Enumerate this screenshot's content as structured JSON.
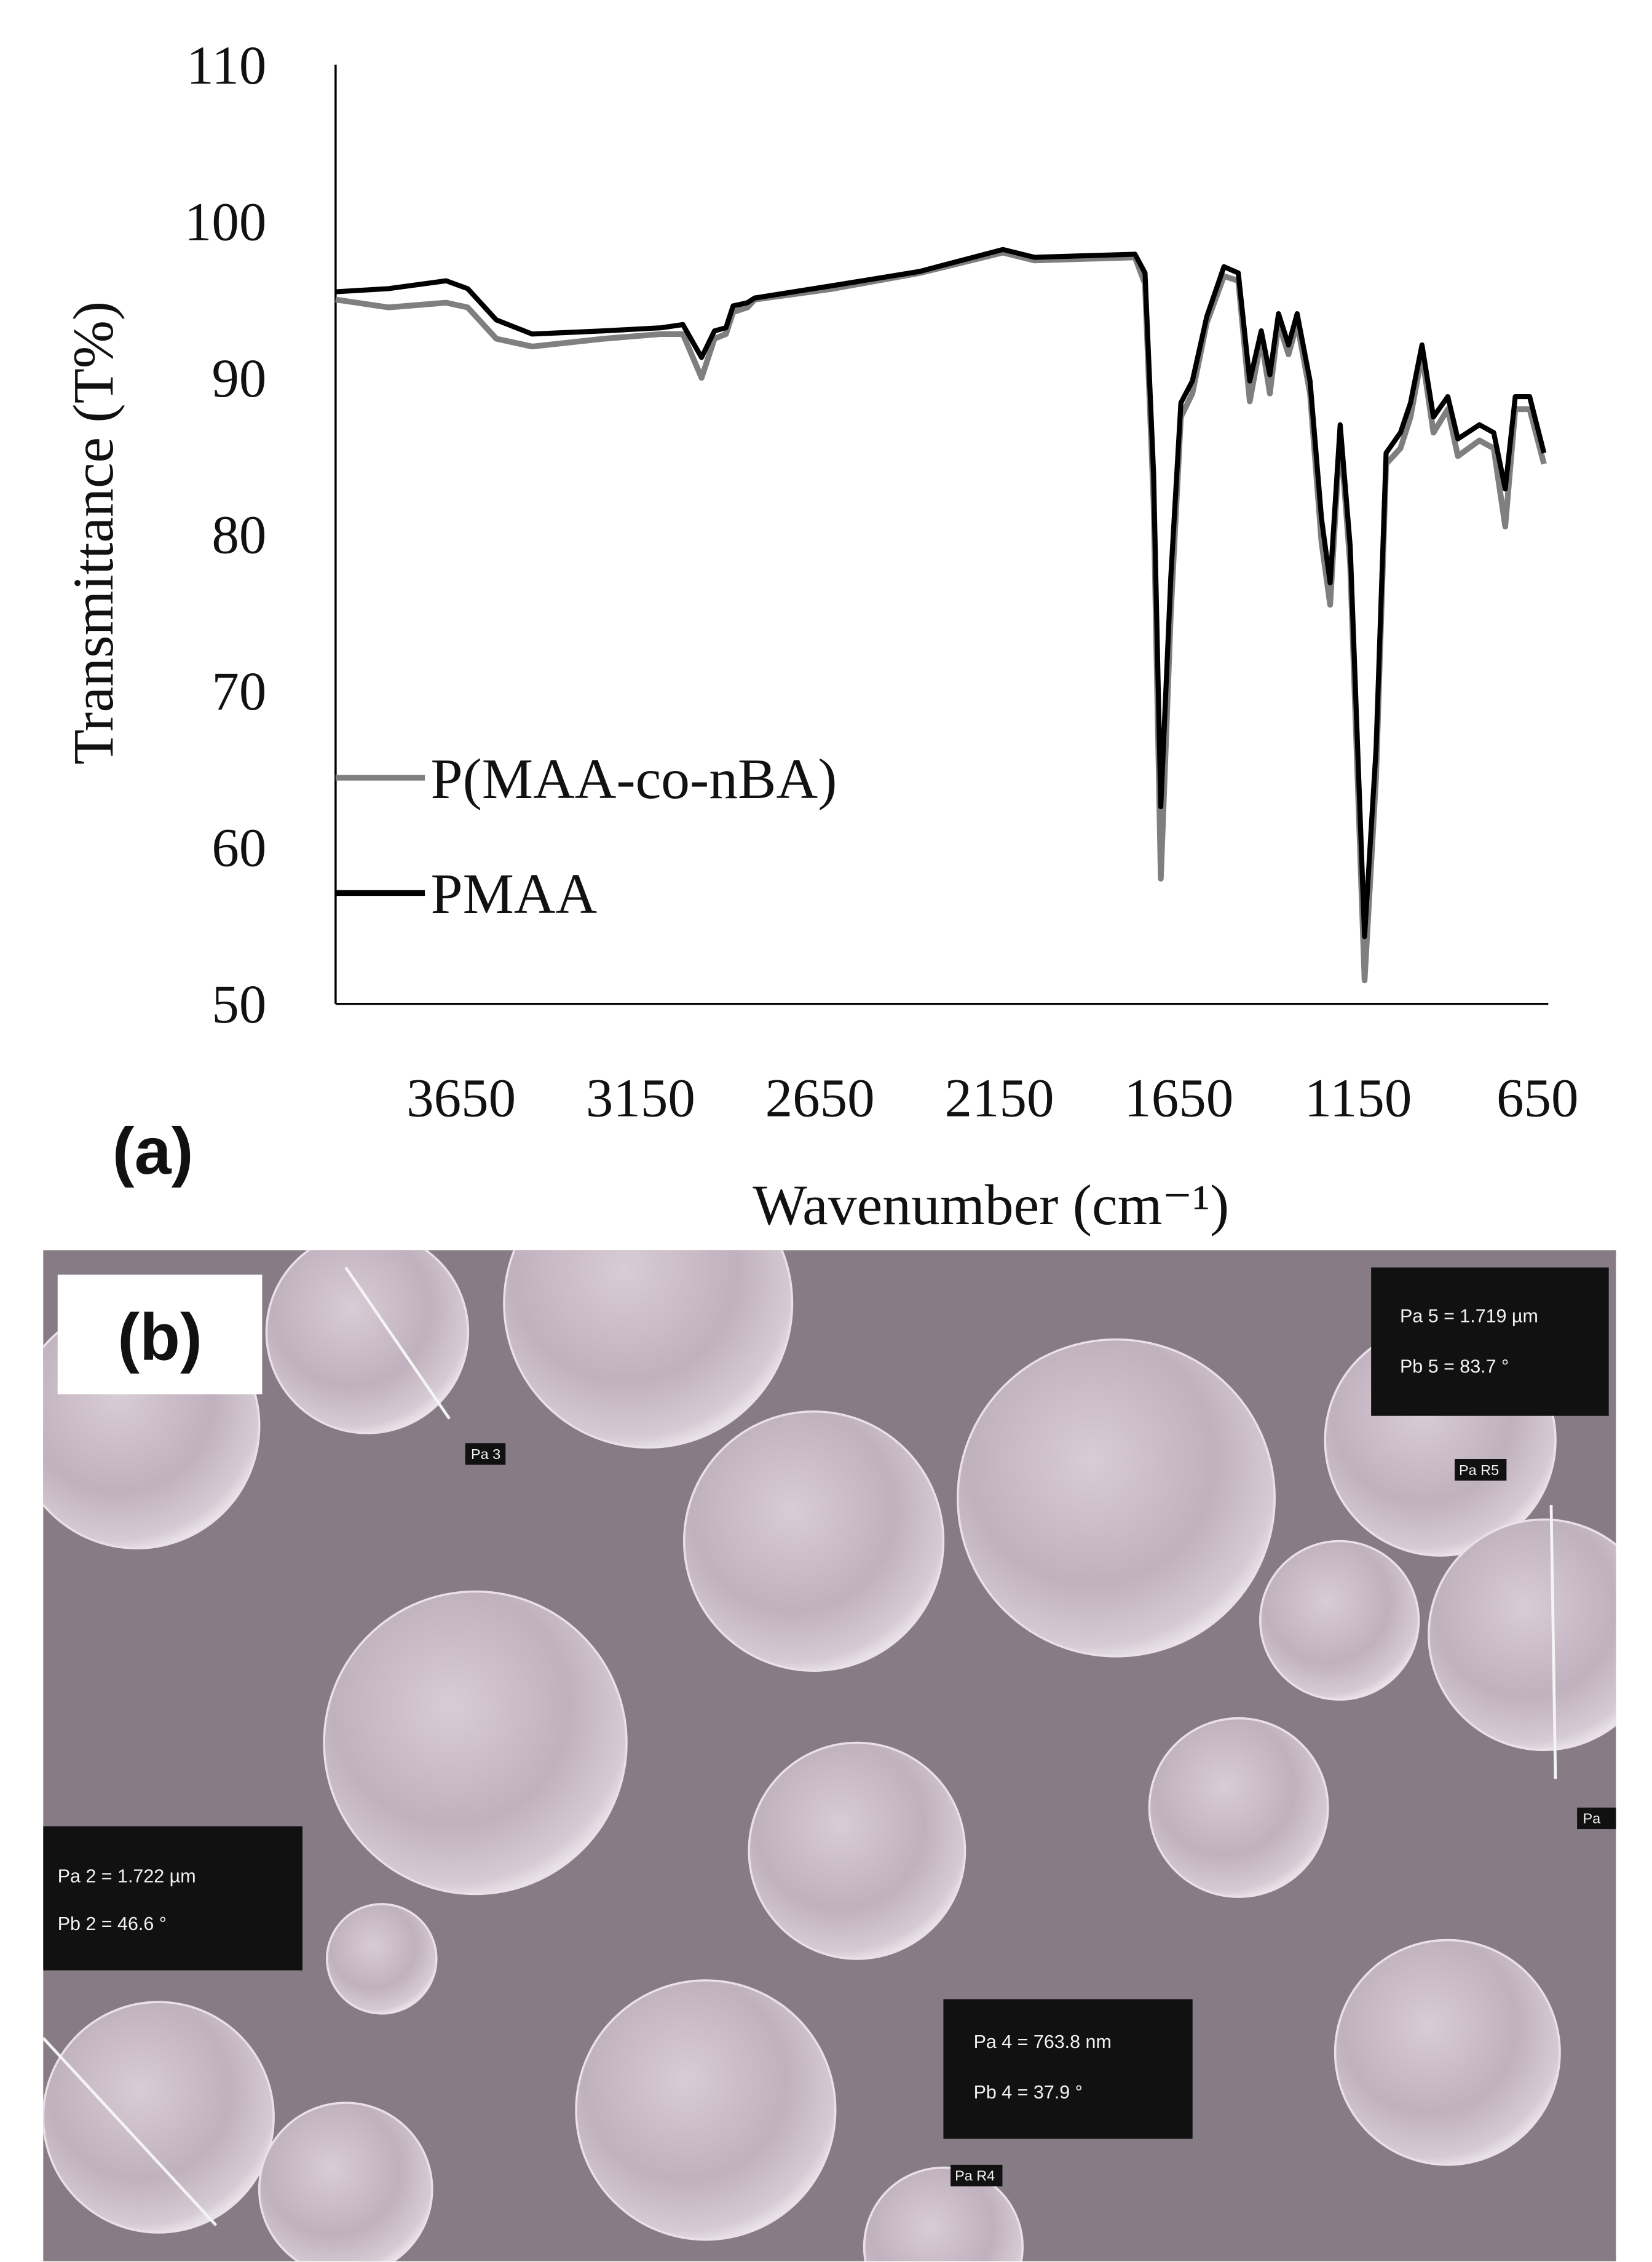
{
  "chart_data": {
    "type": "line",
    "panel_label": "(a)",
    "x_label": "Wavenumber  (cm⁻¹)",
    "y_label": "Transmittance  (T%)",
    "xlim": [
      4000,
      620
    ],
    "xticks": [
      3650,
      3150,
      2650,
      2150,
      1650,
      1150,
      650
    ],
    "ylim": [
      50,
      110
    ],
    "yticks": [
      50,
      60,
      70,
      80,
      90,
      100,
      110
    ],
    "grid": false,
    "legend": "center left",
    "x": [
      4000,
      3852,
      3692,
      3632,
      3552,
      3452,
      3252,
      3092,
      3032,
      2980,
      2944,
      2912,
      2892,
      2852,
      2832,
      2612,
      2372,
      2140,
      2052,
      1772,
      1744,
      1720,
      1700,
      1672,
      1644,
      1612,
      1572,
      1524,
      1484,
      1452,
      1420,
      1396,
      1372,
      1344,
      1320,
      1284,
      1252,
      1228,
      1200,
      1172,
      1132,
      1100,
      1072,
      1032,
      1004,
      972,
      940,
      900,
      872,
      812,
      772,
      740,
      712,
      672,
      632
    ],
    "series": [
      {
        "name": "P(MAA-co-nBA)",
        "color": "#7f7f7f",
        "values": [
          95.0,
          94.5,
          94.8,
          94.5,
          92.5,
          92.0,
          92.5,
          92.8,
          92.8,
          90.0,
          92.5,
          92.8,
          94.2,
          94.5,
          95.0,
          95.7,
          96.7,
          98.0,
          97.5,
          97.7,
          96.0,
          82.0,
          58.0,
          75.0,
          87.5,
          89.0,
          93.5,
          96.5,
          96.2,
          88.5,
          92.5,
          89.0,
          93.5,
          91.5,
          93.5,
          89.0,
          79.5,
          75.5,
          86.5,
          78.0,
          51.5,
          64.5,
          84.5,
          85.5,
          87.5,
          91.5,
          86.5,
          88.0,
          85.0,
          86.0,
          85.5,
          80.5,
          88.0,
          88.0,
          84.5
        ]
      },
      {
        "name": "PMAA",
        "color": "#000000",
        "values": [
          95.5,
          95.7,
          96.2,
          95.7,
          93.7,
          92.8,
          93.0,
          93.2,
          93.4,
          91.3,
          93.0,
          93.2,
          94.6,
          94.8,
          95.1,
          95.9,
          96.8,
          98.2,
          97.7,
          97.9,
          96.7,
          83.8,
          62.6,
          77.3,
          88.4,
          89.8,
          93.9,
          97.1,
          96.7,
          89.8,
          93.0,
          90.2,
          94.1,
          92.1,
          94.1,
          89.8,
          81.0,
          76.9,
          87.0,
          79.2,
          54.3,
          66.3,
          85.2,
          86.5,
          88.4,
          92.1,
          87.5,
          88.8,
          86.1,
          87.0,
          86.5,
          82.9,
          88.8,
          88.8,
          85.2
        ]
      }
    ]
  },
  "panel_b": {
    "panel_label": "(b)",
    "measurements": [
      {
        "line1": "Pa 5 = 1.719 µm",
        "line2": "Pb 5 = 83.7 °"
      },
      {
        "line1": "Pa 2 = 1.722 µm",
        "line2": "Pb 2 = 46.6 °"
      },
      {
        "line1": "Pa 4 = 763.8 nm",
        "line2": "Pb 4 = 37.9 °"
      }
    ],
    "tags": [
      "Pa 3",
      "Pa R5",
      "Pa",
      "Pa R4"
    ]
  }
}
